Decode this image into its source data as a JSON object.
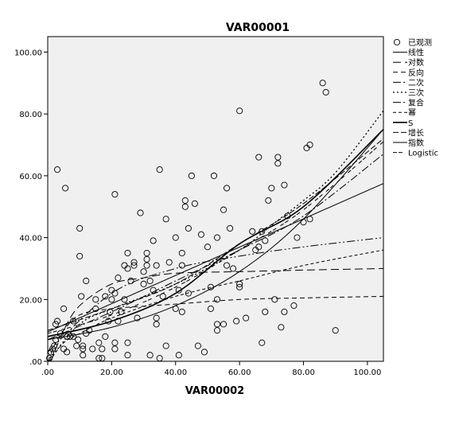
{
  "chart_data": {
    "type": "scatter",
    "title": "VAR00001",
    "xlabel": "VAR00002",
    "ylabel": "",
    "xlim": [
      0,
      105
    ],
    "ylim": [
      0,
      105
    ],
    "x_ticks": [
      ".00",
      "20.00",
      "40.00",
      "60.00",
      "80.00",
      "100.00"
    ],
    "y_ticks": [
      ".00",
      "20.00",
      "40.00",
      "60.00",
      "80.00",
      "100.00"
    ],
    "grid": false,
    "legend_position": "right",
    "plot_background": "#f0f0f0",
    "legend": [
      {
        "label": "已观测",
        "style": "circle"
      },
      {
        "label": "线性",
        "style": "solid"
      },
      {
        "label": "对数",
        "style": "longdash"
      },
      {
        "label": "反向",
        "style": "dash"
      },
      {
        "label": "二次",
        "style": "dashdot"
      },
      {
        "label": "三次",
        "style": "dot"
      },
      {
        "label": "复合",
        "style": "dashdotdot"
      },
      {
        "label": "幂",
        "style": "shortdash"
      },
      {
        "label": "S",
        "style": "solidthick"
      },
      {
        "label": "增长",
        "style": "dash2"
      },
      {
        "label": "指数",
        "style": "solid"
      },
      {
        "label": "Logistic",
        "style": "dash3"
      }
    ],
    "points": [
      [
        0.5,
        1
      ],
      [
        1,
        3
      ],
      [
        1.5,
        4
      ],
      [
        2,
        5
      ],
      [
        2.5,
        7
      ],
      [
        2.5,
        12
      ],
      [
        3,
        13
      ],
      [
        3,
        62
      ],
      [
        4,
        9
      ],
      [
        5,
        4
      ],
      [
        5,
        17
      ],
      [
        5.5,
        56
      ],
      [
        6,
        3
      ],
      [
        6,
        8
      ],
      [
        7,
        8
      ],
      [
        8,
        8
      ],
      [
        8,
        13
      ],
      [
        9,
        5
      ],
      [
        9.5,
        7
      ],
      [
        10,
        43
      ],
      [
        10,
        34
      ],
      [
        10.5,
        21
      ],
      [
        11,
        2
      ],
      [
        11,
        4
      ],
      [
        11,
        5
      ],
      [
        12,
        26
      ],
      [
        12,
        9
      ],
      [
        13,
        10
      ],
      [
        14,
        4
      ],
      [
        15,
        17
      ],
      [
        15,
        20
      ],
      [
        16,
        1
      ],
      [
        16,
        6
      ],
      [
        17,
        1
      ],
      [
        17,
        4
      ],
      [
        18,
        8
      ],
      [
        18,
        21
      ],
      [
        19,
        13
      ],
      [
        19.5,
        16
      ],
      [
        20,
        20
      ],
      [
        20,
        23
      ],
      [
        21,
        22
      ],
      [
        21,
        6
      ],
      [
        21,
        4
      ],
      [
        21,
        54
      ],
      [
        22,
        27
      ],
      [
        22,
        13
      ],
      [
        23,
        16
      ],
      [
        24,
        20
      ],
      [
        24,
        31
      ],
      [
        25,
        30
      ],
      [
        25,
        35
      ],
      [
        25,
        6
      ],
      [
        25,
        2
      ],
      [
        26,
        26
      ],
      [
        27,
        31
      ],
      [
        27,
        32
      ],
      [
        28,
        14
      ],
      [
        29,
        48
      ],
      [
        30,
        25
      ],
      [
        30,
        29
      ],
      [
        31,
        31
      ],
      [
        31,
        35
      ],
      [
        31,
        33
      ],
      [
        32,
        2
      ],
      [
        32,
        26
      ],
      [
        33,
        23
      ],
      [
        33,
        39
      ],
      [
        34,
        14
      ],
      [
        34,
        12
      ],
      [
        34,
        31
      ],
      [
        35,
        62
      ],
      [
        35,
        1
      ],
      [
        36,
        21
      ],
      [
        37,
        46
      ],
      [
        37,
        5
      ],
      [
        38,
        32
      ],
      [
        40,
        40
      ],
      [
        40,
        17
      ],
      [
        41,
        2
      ],
      [
        41,
        23
      ],
      [
        42,
        35
      ],
      [
        42,
        31
      ],
      [
        42,
        16
      ],
      [
        43,
        52
      ],
      [
        43,
        50
      ],
      [
        44,
        43
      ],
      [
        44,
        22
      ],
      [
        45,
        60
      ],
      [
        46,
        51
      ],
      [
        47,
        5
      ],
      [
        48,
        41
      ],
      [
        49,
        3
      ],
      [
        50,
        37
      ],
      [
        51,
        17
      ],
      [
        51,
        24
      ],
      [
        52,
        60
      ],
      [
        53,
        40
      ],
      [
        53,
        20
      ],
      [
        53,
        12
      ],
      [
        53,
        10
      ],
      [
        55,
        49
      ],
      [
        55,
        12
      ],
      [
        56,
        56
      ],
      [
        56,
        31
      ],
      [
        57,
        43
      ],
      [
        58,
        30
      ],
      [
        59,
        13
      ],
      [
        60,
        81
      ],
      [
        60,
        24
      ],
      [
        60,
        25
      ],
      [
        62,
        14
      ],
      [
        64,
        42
      ],
      [
        65,
        36
      ],
      [
        66,
        66
      ],
      [
        66,
        37
      ],
      [
        67,
        6
      ],
      [
        67,
        42
      ],
      [
        68,
        39
      ],
      [
        68,
        16
      ],
      [
        69,
        52
      ],
      [
        70,
        56
      ],
      [
        71,
        20
      ],
      [
        72,
        64
      ],
      [
        72,
        66
      ],
      [
        73,
        11
      ],
      [
        74,
        16
      ],
      [
        74,
        57
      ],
      [
        75,
        47
      ],
      [
        77,
        18
      ],
      [
        78,
        40
      ],
      [
        80,
        45
      ],
      [
        81,
        69
      ],
      [
        82,
        70
      ],
      [
        82,
        46
      ],
      [
        86,
        90
      ],
      [
        87,
        87
      ],
      [
        90,
        10
      ]
    ],
    "series": [
      {
        "name": "线性",
        "style": "solid",
        "x": [
          0,
          105
        ],
        "y": [
          9.5,
          57.5
        ]
      },
      {
        "name": "对数",
        "style": "longdash",
        "x": [
          1,
          5,
          10,
          20,
          30,
          40,
          60,
          80,
          105
        ],
        "y": [
          0,
          10,
          18,
          25,
          27,
          28.5,
          29,
          29.5,
          30
        ]
      },
      {
        "name": "反向",
        "style": "dash",
        "x": [
          0.3,
          2,
          5,
          10,
          20,
          40,
          60,
          80,
          105
        ],
        "y": [
          0,
          5,
          10,
          15,
          17,
          18.5,
          20,
          20.5,
          21
        ]
      },
      {
        "name": "二次",
        "style": "dashdot",
        "x": [
          0,
          20,
          40,
          60,
          80,
          105
        ],
        "y": [
          7,
          16,
          26,
          36,
          47,
          67
        ]
      },
      {
        "name": "三次",
        "style": "dot",
        "x": [
          0,
          10,
          20,
          40,
          60,
          70,
          80,
          90,
          105
        ],
        "y": [
          0,
          12,
          17,
          25,
          36,
          44,
          52,
          61,
          81
        ]
      },
      {
        "name": "复合",
        "style": "dashdotdot",
        "x": [
          0,
          20,
          40,
          60,
          80,
          105
        ],
        "y": [
          3,
          22,
          30,
          34,
          37,
          40
        ]
      },
      {
        "name": "幂",
        "style": "shortdash",
        "x": [
          0.5,
          5,
          10,
          20,
          40,
          60,
          80,
          105
        ],
        "y": [
          0,
          6,
          9,
          14,
          21,
          26,
          31,
          36
        ]
      },
      {
        "name": "S",
        "style": "solidthick",
        "x": [
          0,
          20,
          40,
          60,
          80,
          105
        ],
        "y": [
          8,
          13,
          22,
          38,
          50,
          75
        ]
      },
      {
        "name": "增长",
        "style": "dash2",
        "x": [
          0,
          20,
          40,
          60,
          80,
          105
        ],
        "y": [
          10,
          17,
          25,
          38,
          51,
          72
        ]
      },
      {
        "name": "指数",
        "style": "solid",
        "x": [
          0,
          20,
          40,
          60,
          80,
          105
        ],
        "y": [
          7,
          11,
          18,
          29,
          46,
          75
        ]
      },
      {
        "name": "Logistic",
        "style": "dash3",
        "x": [
          0,
          20,
          40,
          60,
          80,
          105
        ],
        "y": [
          9,
          15,
          24,
          36,
          49,
          71
        ]
      }
    ]
  }
}
